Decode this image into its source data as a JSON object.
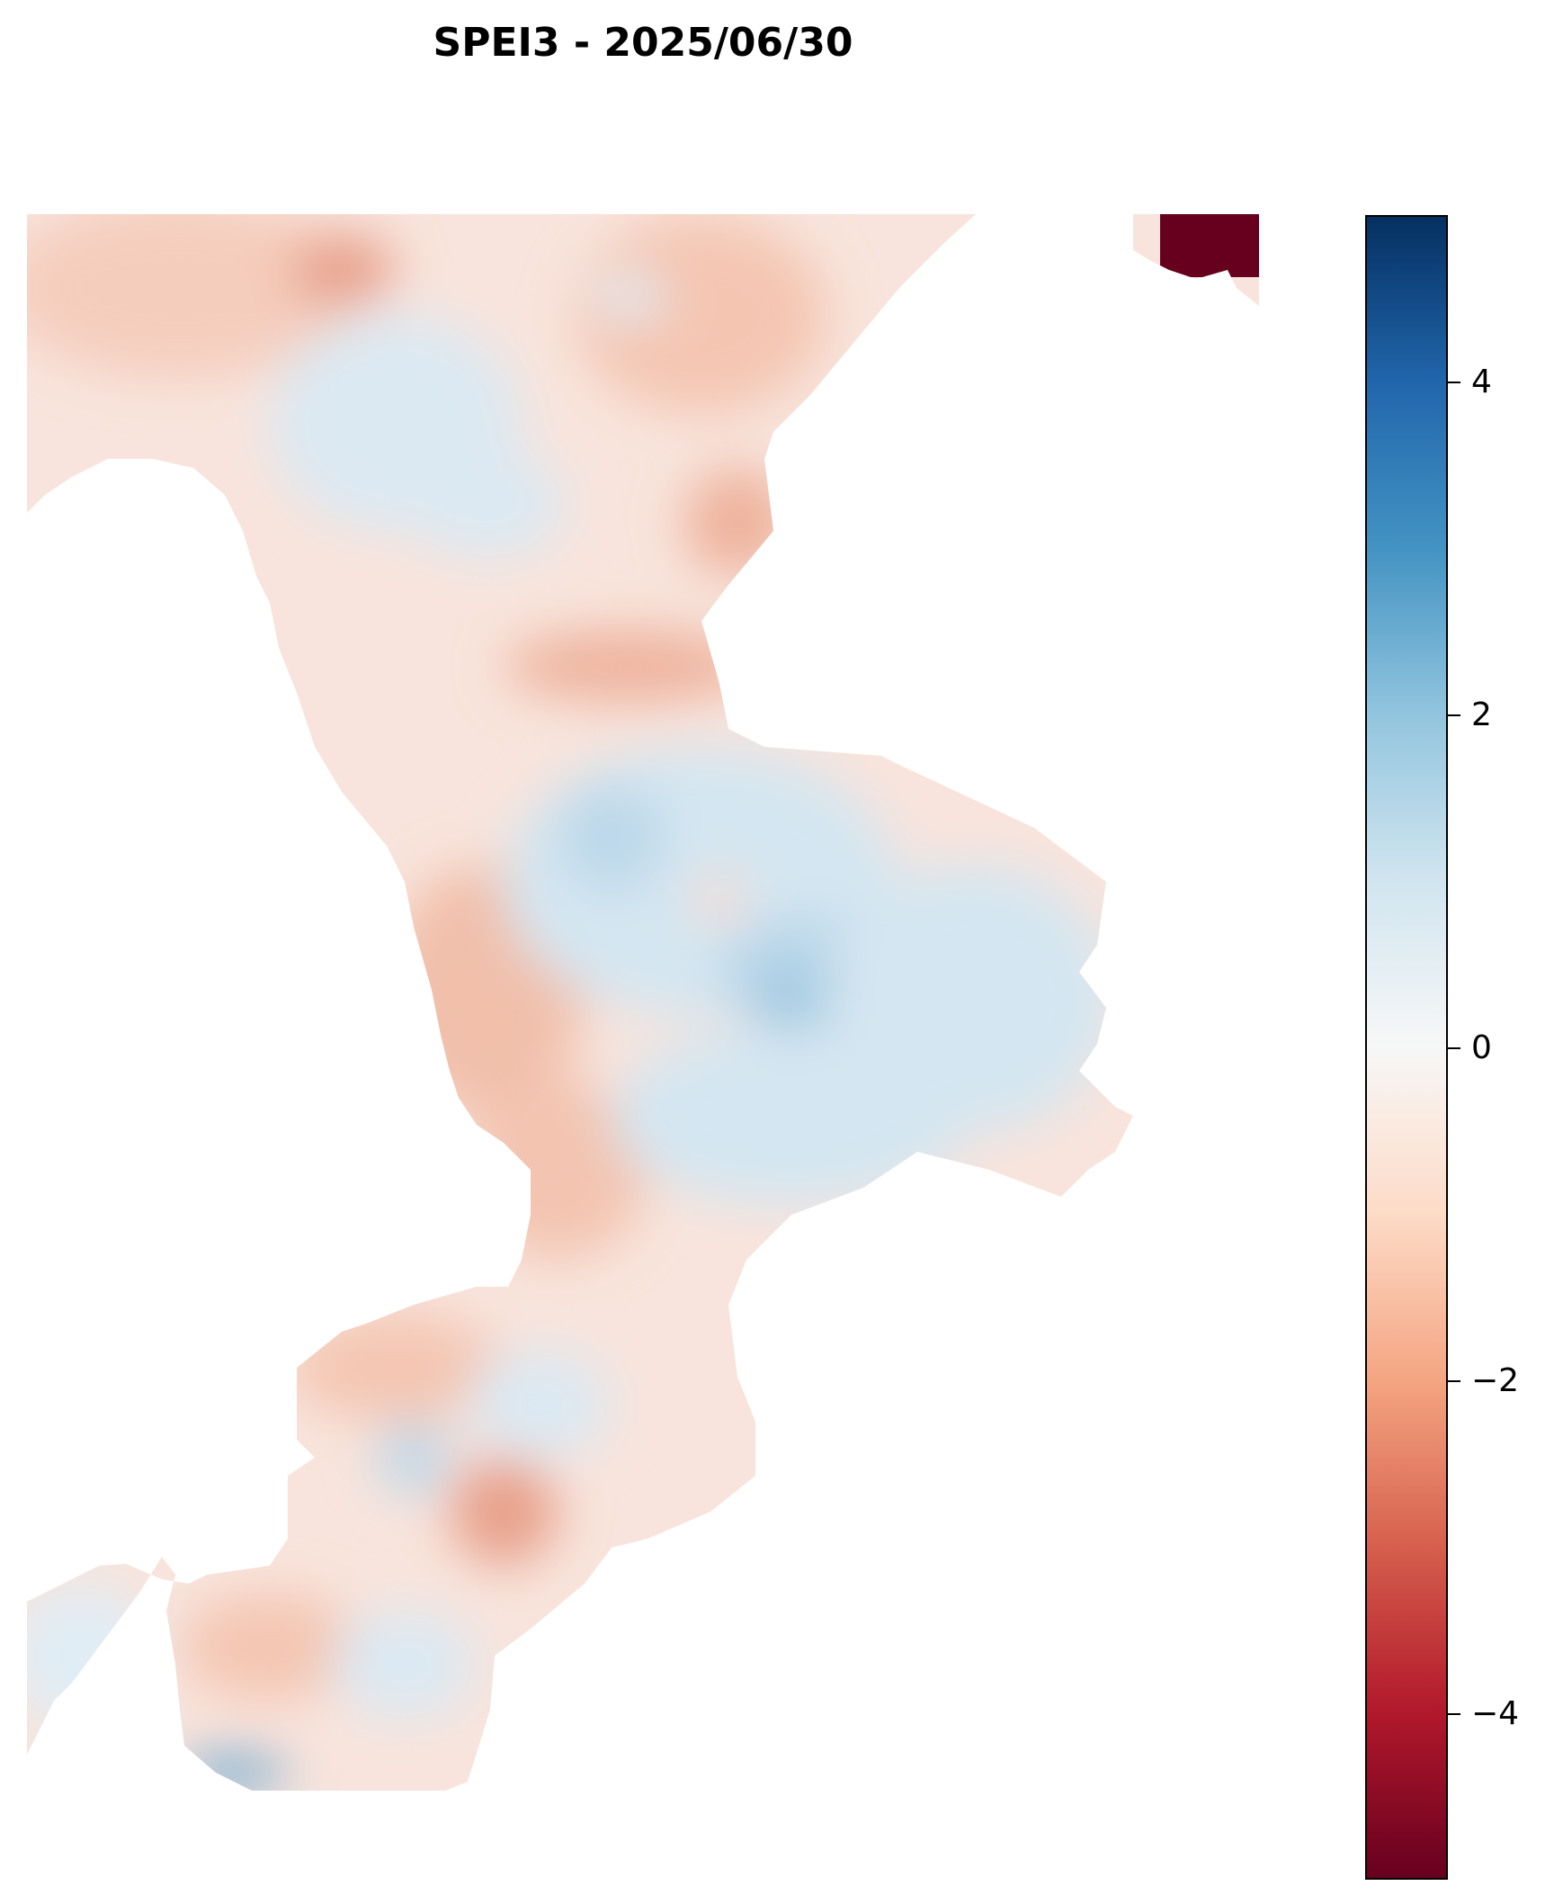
{
  "title": "SPEI3 - 2025/06/30",
  "colorbar": {
    "colormap": "RdBu",
    "range": [
      -5,
      5
    ],
    "ticks": [
      {
        "value": 4,
        "label": "4"
      },
      {
        "value": 2,
        "label": "2"
      },
      {
        "value": 0,
        "label": "0"
      },
      {
        "value": -2,
        "label": "−2"
      },
      {
        "value": -4,
        "label": "−4"
      }
    ]
  },
  "map": {
    "variable": "SPEI3",
    "date": "2025/06/30"
  },
  "colors": {
    "extreme_dry": "#67001f",
    "dry": "#f4a582",
    "neutral": "#f7f7f7",
    "wet": "#92c5de",
    "extreme_wet": "#053061"
  }
}
